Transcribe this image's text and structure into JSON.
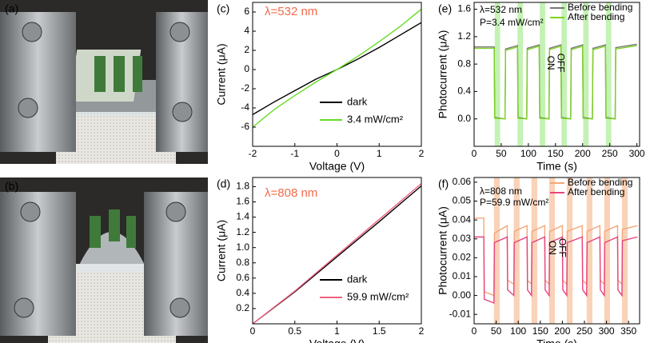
{
  "photos": [
    {
      "label": "(a)"
    },
    {
      "label": "(b)"
    }
  ],
  "chart_data": [
    {
      "type": "line",
      "panel_label": "(c)",
      "x_label": "Voltage (V)",
      "y_label": "Current (μA)",
      "annotations": [
        "λ=532 nm"
      ],
      "annotation_color": "#f26b4a",
      "legend": "lower right",
      "x": [
        -2,
        -1.5,
        -1,
        -0.5,
        0,
        0.5,
        1,
        1.5,
        2
      ],
      "series": [
        {
          "name": "dark",
          "color": "#000000",
          "values": [
            -4.7,
            -3.4,
            -2.2,
            -1.0,
            0,
            1.1,
            2.3,
            3.6,
            4.9
          ]
        },
        {
          "name": "3.4 mW/cm²",
          "color": "#66dd22",
          "values": [
            -6.0,
            -4.2,
            -2.7,
            -1.3,
            0,
            1.4,
            2.9,
            4.5,
            6.3
          ]
        }
      ],
      "xlim": [
        -2,
        2
      ],
      "xticks": [
        -2,
        -1,
        0,
        1,
        2
      ],
      "ylim": [
        -8,
        7
      ],
      "yticks": [
        -6,
        -4,
        -2,
        0,
        2,
        4,
        6
      ]
    },
    {
      "type": "line",
      "panel_label": "(d)",
      "x_label": "Voltage (V)",
      "y_label": "Current (μA)",
      "annotations": [
        "λ=808 nm"
      ],
      "annotation_color": "#f26b4a",
      "legend": "lower right",
      "x": [
        0,
        0.5,
        1,
        1.5,
        2
      ],
      "series": [
        {
          "name": "dark",
          "color": "#000000",
          "values": [
            0,
            0.42,
            0.88,
            1.34,
            1.81
          ]
        },
        {
          "name": "59.9 mW/cm²",
          "color": "#f06080",
          "values": [
            0,
            0.43,
            0.9,
            1.37,
            1.84
          ]
        }
      ],
      "xlim": [
        0,
        2
      ],
      "xticks": [
        0,
        0.5,
        1,
        1.5,
        2
      ],
      "ylim": [
        0,
        1.92
      ],
      "yticks": [
        0.2,
        0.4,
        0.6,
        0.8,
        {
          "value": 1,
          "label": "1.0"
        },
        1.2,
        1.4,
        1.6,
        1.8
      ]
    },
    {
      "type": "line",
      "panel_label": "(e)",
      "x_label": "Time (s)",
      "y_label": "Photocurrent (μA)",
      "annotations": [
        "λ=532 nm",
        "P=3.4 mW/cm²",
        "ON",
        "OFF"
      ],
      "annotation_color": "#000000",
      "legend": "upper right",
      "band_color": "#c4f2b4",
      "bands": [
        [
          38,
          48
        ],
        [
          80,
          90
        ],
        [
          121,
          131
        ],
        [
          161,
          171
        ],
        [
          201,
          211
        ],
        [
          243,
          253
        ]
      ],
      "x": [
        0,
        37,
        38,
        57,
        58,
        80,
        81,
        97,
        98,
        120,
        121,
        138,
        139,
        160,
        161,
        178,
        179,
        200,
        201,
        218,
        219,
        242,
        243,
        260,
        261,
        300
      ],
      "series": [
        {
          "name": "Before bending",
          "color": "#777777",
          "values": [
            1.05,
            1.05,
            0.02,
            0.0,
            1.02,
            1.07,
            0.02,
            0.0,
            1.03,
            1.08,
            0.02,
            0.0,
            1.03,
            1.08,
            0.02,
            0.0,
            1.03,
            1.08,
            0.02,
            0.0,
            1.03,
            1.08,
            0.02,
            0.0,
            1.04,
            1.09
          ]
        },
        {
          "name": "After bending",
          "color": "#7ed321",
          "values": [
            1.03,
            1.03,
            0.01,
            0.0,
            1.0,
            1.05,
            0.01,
            0.0,
            1.01,
            1.06,
            0.01,
            0.0,
            1.01,
            1.06,
            0.01,
            0.0,
            1.01,
            1.06,
            0.01,
            0.0,
            1.01,
            1.06,
            0.01,
            0.0,
            1.02,
            1.07
          ]
        }
      ],
      "xlim": [
        0,
        305
      ],
      "xticks": [
        0,
        50,
        100,
        150,
        200,
        250,
        300
      ],
      "ylim": [
        -0.4,
        1.7
      ],
      "yticks": [
        {
          "value": 0,
          "label": "0.0"
        },
        0.4,
        0.8,
        1.2,
        1.6
      ]
    },
    {
      "type": "line",
      "panel_label": "(f)",
      "x_label": "Time (s)",
      "y_label": "Photocurrent (μA)",
      "annotations": [
        "λ=808 nm",
        "P=59.9 mW/cm²",
        "ON",
        "OFF"
      ],
      "annotation_color": "#000000",
      "legend": "upper right",
      "band_color": "#f9d2b8",
      "bands": [
        [
          45,
          58
        ],
        [
          90,
          103
        ],
        [
          130,
          143
        ],
        [
          170,
          183
        ],
        [
          210,
          223
        ],
        [
          255,
          268
        ],
        [
          295,
          308
        ],
        [
          335,
          348
        ]
      ],
      "x": [
        0,
        22,
        23,
        45,
        46,
        75,
        76,
        90,
        91,
        120,
        121,
        130,
        131,
        160,
        161,
        170,
        171,
        200,
        201,
        210,
        211,
        245,
        246,
        255,
        256,
        285,
        286,
        295,
        296,
        325,
        326,
        335,
        336,
        370
      ],
      "series": [
        {
          "name": "Before bending",
          "color": "#f4a77a",
          "values": [
            0.041,
            0.041,
            0.002,
            0.0,
            0.033,
            0.037,
            0.008,
            0.006,
            0.034,
            0.037,
            0.008,
            0.006,
            0.034,
            0.037,
            0.008,
            0.006,
            0.034,
            0.037,
            0.008,
            0.006,
            0.034,
            0.037,
            0.008,
            0.006,
            0.034,
            0.037,
            0.008,
            0.006,
            0.034,
            0.037,
            0.008,
            0.006,
            0.035,
            0.037
          ]
        },
        {
          "name": "After bending",
          "color": "#e8457d",
          "values": [
            0.031,
            0.031,
            -0.002,
            -0.004,
            0.028,
            0.031,
            0.003,
            0.0,
            0.028,
            0.031,
            0.003,
            0.0,
            0.028,
            0.031,
            0.003,
            0.0,
            0.028,
            0.031,
            0.003,
            0.0,
            0.028,
            0.031,
            0.003,
            0.0,
            0.028,
            0.031,
            0.003,
            0.0,
            0.028,
            0.031,
            0.003,
            0.0,
            0.029,
            0.031
          ]
        }
      ],
      "xlim": [
        0,
        375
      ],
      "xticks": [
        0,
        50,
        100,
        150,
        200,
        250,
        300,
        350
      ],
      "ylim": [
        -0.015,
        0.0625
      ],
      "yticks": [
        -0.01,
        {
          "value": 0,
          "label": "0.00"
        },
        0.01,
        0.02,
        0.03,
        0.04,
        0.05,
        0.06
      ]
    }
  ]
}
